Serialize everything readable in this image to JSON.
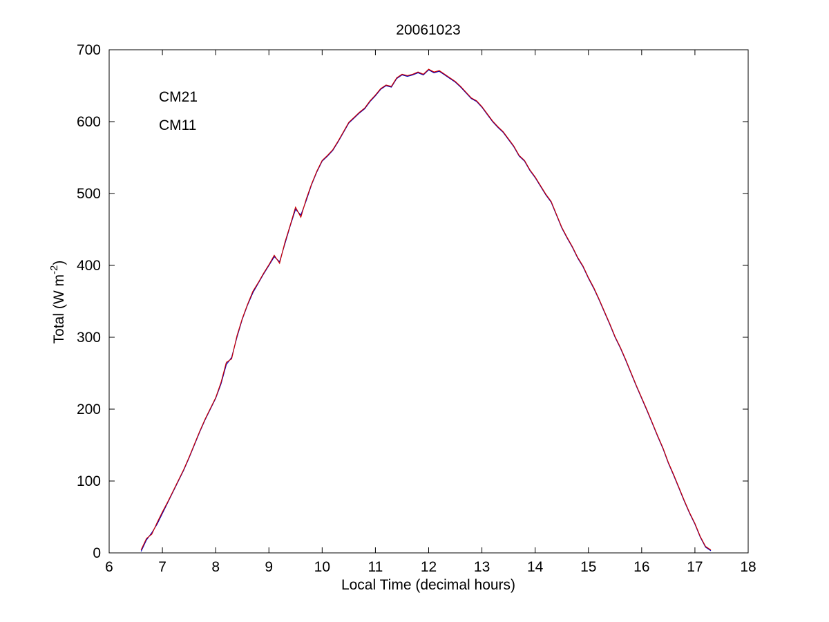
{
  "figure": {
    "background": "#ffffff",
    "axes_border_color": "#000000"
  },
  "chart_data": {
    "type": "line",
    "title": "20061023",
    "xlabel": "Local Time (decimal hours)",
    "ylabel": "Total (W m⁻²)",
    "ylabel_parts": {
      "main": "Total (W m",
      "sup": "-2",
      "end": ")"
    },
    "xlim": [
      6,
      18
    ],
    "ylim": [
      0,
      700
    ],
    "xticks": [
      "6",
      "7",
      "8",
      "9",
      "10",
      "11",
      "12",
      "13",
      "14",
      "15",
      "16",
      "17",
      "18"
    ],
    "xtick_values": [
      6,
      7,
      8,
      9,
      10,
      11,
      12,
      13,
      14,
      15,
      16,
      17,
      18
    ],
    "yticks": [
      "0",
      "100",
      "200",
      "300",
      "400",
      "500",
      "600",
      "700"
    ],
    "ytick_values": [
      0,
      100,
      200,
      300,
      400,
      500,
      600,
      700
    ],
    "grid": false,
    "legend": {
      "position": "upper-left-inside",
      "entries": [
        {
          "label": "CM21",
          "color": "#0000cc"
        },
        {
          "label": "CM11",
          "color": "#cc2222"
        }
      ]
    },
    "x": [
      6.6,
      6.7,
      6.8,
      6.9,
      7.0,
      7.1,
      7.2,
      7.3,
      7.4,
      7.5,
      7.6,
      7.7,
      7.8,
      7.9,
      8.0,
      8.1,
      8.2,
      8.3,
      8.4,
      8.5,
      8.6,
      8.7,
      8.8,
      8.9,
      9.0,
      9.1,
      9.2,
      9.3,
      9.4,
      9.5,
      9.6,
      9.7,
      9.8,
      9.9,
      10.0,
      10.1,
      10.2,
      10.3,
      10.4,
      10.5,
      10.6,
      10.7,
      10.8,
      10.9,
      11.0,
      11.1,
      11.2,
      11.3,
      11.4,
      11.5,
      11.6,
      11.7,
      11.8,
      11.9,
      12.0,
      12.1,
      12.2,
      12.3,
      12.4,
      12.5,
      12.6,
      12.7,
      12.8,
      12.9,
      13.0,
      13.1,
      13.2,
      13.3,
      13.4,
      13.5,
      13.6,
      13.7,
      13.8,
      13.9,
      14.0,
      14.1,
      14.2,
      14.3,
      14.4,
      14.5,
      14.6,
      14.7,
      14.8,
      14.9,
      15.0,
      15.1,
      15.2,
      15.3,
      15.4,
      15.5,
      15.6,
      15.7,
      15.8,
      15.9,
      16.0,
      16.1,
      16.2,
      16.3,
      16.4,
      16.5,
      16.6,
      16.7,
      16.8,
      16.9,
      17.0,
      17.1,
      17.2,
      17.3
    ],
    "series": [
      {
        "name": "CM21",
        "color": "#0000bb",
        "values": [
          2,
          18,
          28,
          40,
          55,
          70,
          85,
          100,
          115,
          132,
          150,
          168,
          185,
          200,
          215,
          235,
          262,
          272,
          300,
          325,
          345,
          362,
          375,
          388,
          400,
          412,
          405,
          430,
          455,
          478,
          470,
          490,
          512,
          530,
          545,
          552,
          560,
          572,
          585,
          598,
          605,
          612,
          618,
          628,
          636,
          645,
          650,
          648,
          660,
          665,
          663,
          665,
          668,
          665,
          672,
          668,
          670,
          665,
          660,
          655,
          648,
          640,
          632,
          628,
          620,
          610,
          600,
          592,
          585,
          575,
          565,
          552,
          545,
          532,
          522,
          510,
          498,
          488,
          470,
          452,
          438,
          425,
          410,
          398,
          382,
          368,
          352,
          335,
          318,
          300,
          285,
          268,
          250,
          232,
          215,
          198,
          180,
          162,
          145,
          125,
          108,
          90,
          72,
          55,
          40,
          22,
          8,
          3
        ]
      },
      {
        "name": "CM11",
        "color": "#cc0000",
        "values": [
          4,
          20,
          26,
          42,
          57,
          71,
          86,
          101,
          116,
          133,
          151,
          169,
          186,
          201,
          216,
          237,
          265,
          270,
          302,
          326,
          346,
          364,
          376,
          389,
          401,
          414,
          403,
          432,
          456,
          481,
          467,
          492,
          513,
          531,
          546,
          553,
          561,
          573,
          586,
          599,
          606,
          613,
          619,
          629,
          637,
          646,
          651,
          649,
          661,
          666,
          664,
          666,
          669,
          666,
          673,
          669,
          671,
          666,
          661,
          656,
          649,
          641,
          633,
          629,
          621,
          611,
          601,
          593,
          586,
          576,
          566,
          553,
          546,
          533,
          523,
          511,
          499,
          489,
          471,
          453,
          439,
          426,
          411,
          399,
          383,
          369,
          353,
          336,
          319,
          301,
          286,
          269,
          251,
          233,
          216,
          199,
          181,
          163,
          146,
          126,
          109,
          91,
          73,
          56,
          41,
          23,
          9,
          4
        ]
      }
    ]
  }
}
